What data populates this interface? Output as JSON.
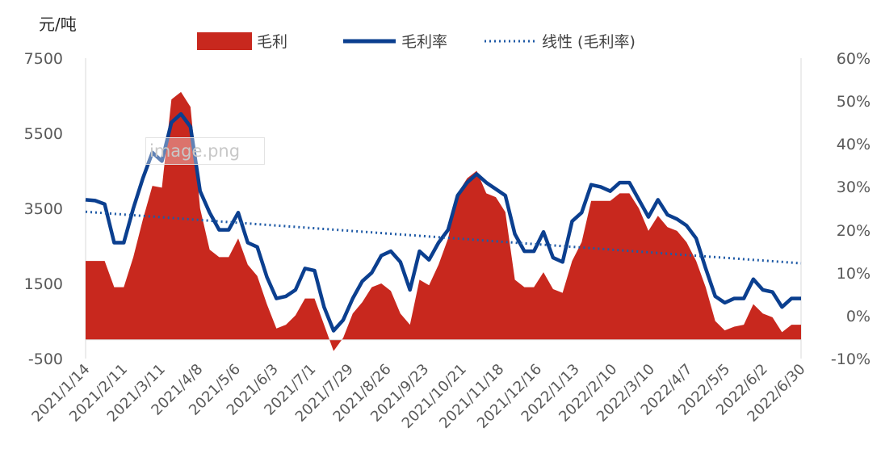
{
  "chart_data": {
    "type": "area+line",
    "y_left_unit": "元/吨",
    "y_left_ticks": [
      "7500",
      "5500",
      "3500",
      "1500",
      "-500"
    ],
    "y_left_range": [
      -500,
      7500
    ],
    "y_right_ticks": [
      "60%",
      "50%",
      "40%",
      "30%",
      "20%",
      "10%",
      "0%",
      "-10%"
    ],
    "y_right_range": [
      -10,
      60
    ],
    "x_ticks": [
      "2021/1/14",
      "2021/2/11",
      "2021/3/11",
      "2021/4/8",
      "2021/5/6",
      "2021/6/3",
      "2021/7/1",
      "2021/7/29",
      "2021/8/26",
      "2021/9/23",
      "2021/10/21",
      "2021/11/18",
      "2021/12/16",
      "2022/1/13",
      "2022/2/10",
      "2022/3/10",
      "2022/4/7",
      "2022/5/5",
      "2022/6/2",
      "2022/6/30"
    ],
    "legend": [
      {
        "label": "毛利",
        "style": "area",
        "color": "#c8281e"
      },
      {
        "label": "毛利率",
        "style": "line",
        "color": "#0b3f8f"
      },
      {
        "label": "线性 (毛利率)",
        "style": "dotted",
        "color": "#1f5aa6"
      }
    ],
    "series": [
      {
        "name": "毛利",
        "axis": "left",
        "values": [
          2100,
          2100,
          2100,
          1400,
          1400,
          2200,
          3200,
          4100,
          4050,
          6400,
          6600,
          6200,
          3500,
          2400,
          2200,
          2200,
          2700,
          2000,
          1700,
          950,
          300,
          400,
          650,
          1100,
          1100,
          400,
          -300,
          50,
          700,
          1000,
          1400,
          1500,
          1300,
          700,
          400,
          1600,
          1450,
          2000,
          2700,
          3900,
          4300,
          4500,
          3900,
          3800,
          3400,
          1600,
          1400,
          1400,
          1800,
          1350,
          1250,
          2100,
          2600,
          3700,
          3700,
          3700,
          3900,
          3900,
          3500,
          2900,
          3300,
          3000,
          2900,
          2600,
          2100,
          1400,
          500,
          250,
          350,
          400,
          950,
          700,
          600,
          200,
          400,
          400
        ],
        "fill": "#c8281e"
      },
      {
        "name": "毛利率",
        "axis": "right",
        "values": [
          27,
          26.8,
          26,
          17,
          17,
          25,
          32,
          38,
          36,
          45,
          47,
          44,
          29,
          24,
          20,
          20,
          24,
          17,
          16,
          9,
          4,
          4.5,
          6,
          11,
          10.5,
          2,
          -3.5,
          -1,
          4,
          8,
          10,
          14,
          15,
          12.5,
          6,
          15,
          13,
          17,
          20,
          28,
          31,
          33,
          31,
          29.5,
          28,
          19,
          15,
          15,
          19.5,
          13.5,
          12.5,
          22,
          24,
          30.5,
          30,
          29,
          31,
          31,
          27,
          23,
          27,
          23.5,
          22.5,
          21,
          18,
          11,
          4.5,
          3,
          4,
          4,
          8.5,
          6,
          5.5,
          2,
          4,
          4
        ],
        "color": "#0b3f8f"
      },
      {
        "name": "线性 (毛利率)",
        "axis": "right",
        "values": [
          24.2,
          12.2
        ],
        "color": "#1f5aa6"
      }
    ]
  }
}
